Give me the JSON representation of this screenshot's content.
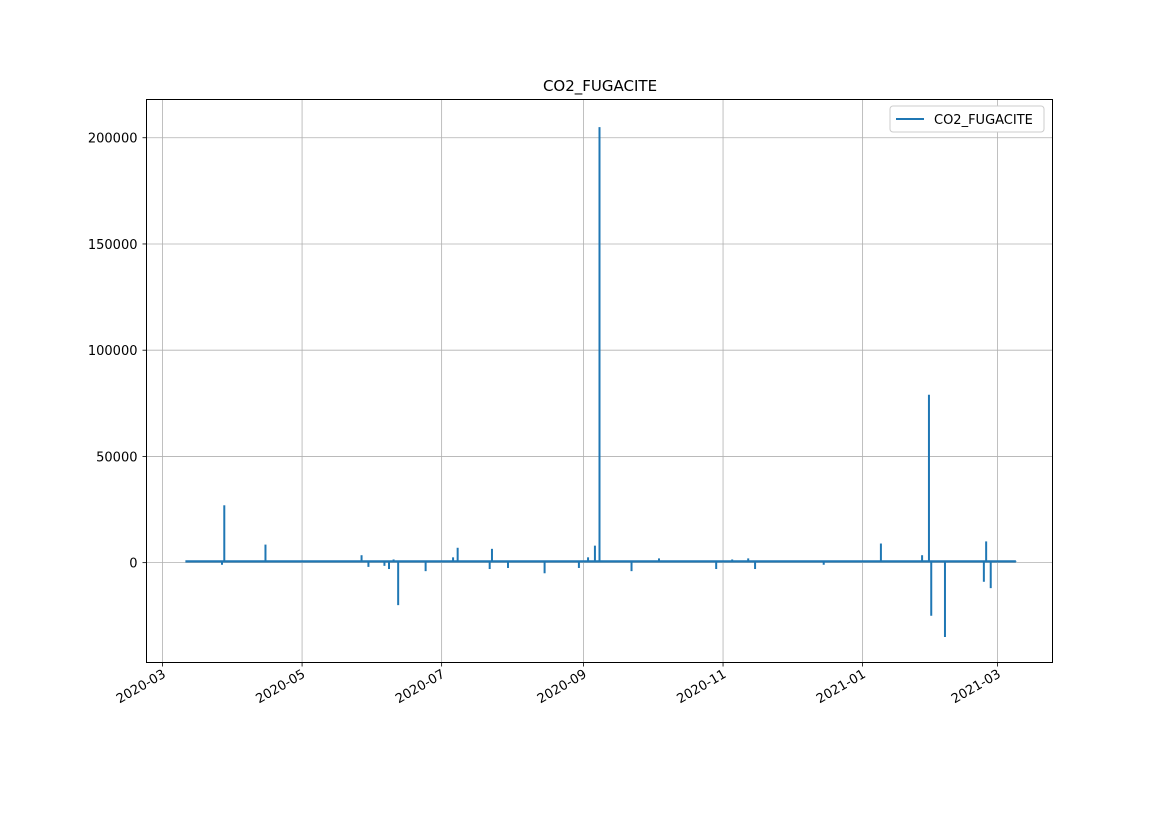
{
  "chart_data": {
    "type": "line",
    "title": "CO2_FUGACITE",
    "xlabel": "",
    "ylabel": "",
    "x_axis_type": "date",
    "xlim": [
      "2020-02-23",
      "2021-03-25"
    ],
    "ylim": [
      -47000,
      218000
    ],
    "grid": true,
    "legend": {
      "position": "top-right",
      "entries": [
        "CO2_FUGACITE"
      ]
    },
    "x_ticks": [
      "2020-03",
      "2020-05",
      "2020-07",
      "2020-09",
      "2020-11",
      "2021-01",
      "2021-03"
    ],
    "y_ticks": [
      0,
      50000,
      100000,
      150000,
      200000
    ],
    "y_tick_labels": [
      "0",
      "50000",
      "100000",
      "150000",
      "200000"
    ],
    "series": [
      {
        "name": "CO2_FUGACITE",
        "color": "#1f77b4",
        "x": [
          "2020-03-11",
          "2020-03-27",
          "2020-03-28",
          "2020-03-29",
          "2020-03-30",
          "2020-04-15",
          "2020-04-16",
          "2020-05-27",
          "2020-05-30",
          "2020-06-06",
          "2020-06-08",
          "2020-06-10",
          "2020-06-12",
          "2020-06-24",
          "2020-07-06",
          "2020-07-08",
          "2020-07-22",
          "2020-07-23",
          "2020-07-30",
          "2020-08-15",
          "2020-08-18",
          "2020-08-30",
          "2020-09-03",
          "2020-09-06",
          "2020-09-08",
          "2020-09-09",
          "2020-09-22",
          "2020-10-04",
          "2020-10-29",
          "2020-11-05",
          "2020-11-12",
          "2020-11-15",
          "2020-12-15",
          "2021-01-09",
          "2021-01-27",
          "2021-01-30",
          "2021-01-31",
          "2021-02-06",
          "2021-02-23",
          "2021-02-24",
          "2021-02-26",
          "2021-03-09"
        ],
        "values": [
          600,
          -1000,
          27000,
          500,
          600,
          8500,
          500,
          3500,
          -2000,
          -1500,
          -3000,
          1500,
          -20000,
          -4000,
          2500,
          7000,
          -3000,
          6500,
          -2500,
          -5000,
          1000,
          -2500,
          2500,
          8000,
          205000,
          500,
          -4000,
          2000,
          -3000,
          1500,
          2000,
          -3000,
          -1000,
          9000,
          3500,
          79000,
          -25000,
          -35000,
          -9000,
          10000,
          -12000,
          800
        ]
      }
    ]
  }
}
